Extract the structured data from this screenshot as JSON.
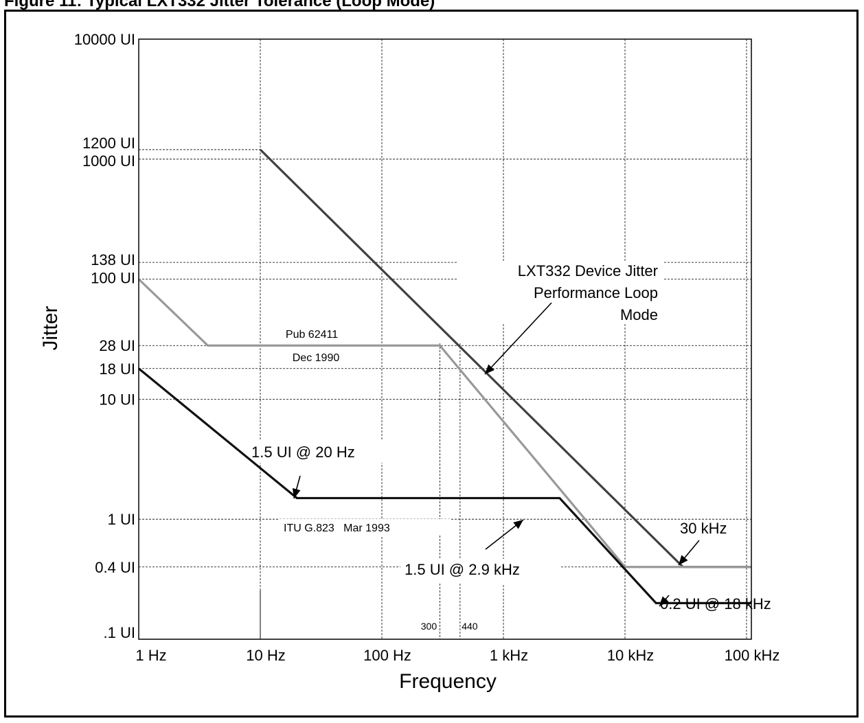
{
  "figure": {
    "caption": "Figure 11: Typical LXT332 Jitter Tolerance (Loop Mode)"
  },
  "chart_data": {
    "type": "line",
    "title": "",
    "xlabel": "Frequency",
    "ylabel": "Jitter",
    "x_scale": "log",
    "y_scale": "log",
    "xlim": [
      1,
      200000
    ],
    "ylim": [
      0.1,
      10000
    ],
    "grid": true,
    "x_ticks": [
      {
        "value": 1,
        "label": "1 Hz"
      },
      {
        "value": 10,
        "label": "10 Hz"
      },
      {
        "value": 100,
        "label": "100 Hz"
      },
      {
        "value": 1000,
        "label": "1 kHz"
      },
      {
        "value": 10000,
        "label": "10 kHz"
      },
      {
        "value": 100000,
        "label": "100 kHz"
      }
    ],
    "y_ticks": [
      {
        "value": 10000,
        "label": "10000 UI"
      },
      {
        "value": 1200,
        "label": "1200 UI"
      },
      {
        "value": 1000,
        "label": "1000 UI"
      },
      {
        "value": 138,
        "label": "138 UI"
      },
      {
        "value": 100,
        "label": "100 UI"
      },
      {
        "value": 28,
        "label": "28 UI"
      },
      {
        "value": 18,
        "label": "18 UI"
      },
      {
        "value": 10,
        "label": "10 UI"
      },
      {
        "value": 1,
        "label": "1 UI"
      },
      {
        "value": 0.4,
        "label": "0.4 UI"
      },
      {
        "value": 0.1,
        "label": ".1 UI"
      }
    ],
    "series": [
      {
        "color": "#404040",
        "points": [
          [
            10,
            1200
          ],
          [
            30000,
            0.4
          ],
          [
            200000,
            0.4
          ]
        ]
      },
      {
        "color": "#999999",
        "points": [
          [
            1,
            100
          ],
          [
            3.7,
            28
          ],
          [
            300,
            28
          ],
          [
            10000,
            0.4
          ],
          [
            200000,
            0.4
          ]
        ]
      },
      {
        "color": "#111111",
        "points": [
          [
            1,
            18
          ],
          [
            20,
            1.5
          ],
          [
            2900,
            1.5
          ],
          [
            18000,
            0.2
          ],
          [
            200000,
            0.2
          ]
        ]
      }
    ],
    "reference_lines": [
      {
        "x": 300,
        "label": "300"
      },
      {
        "x": 440,
        "label": "440"
      }
    ],
    "annotations": [
      {
        "id": "lxt_label",
        "lines": [
          "LXT332 Device Jitter",
          "Performance Loop",
          "Mode"
        ]
      },
      {
        "id": "pub_label",
        "lines": [
          "Pub 62411",
          "Dec 1990"
        ]
      },
      {
        "id": "itu_label",
        "text": "ITU G.823   Mar 1993"
      },
      {
        "id": "pt_20hz",
        "text": "1.5 UI @ 20 Hz"
      },
      {
        "id": "pt_29khz",
        "text": "1.5 UI @ 2.9 kHz"
      },
      {
        "id": "pt_30khz",
        "text": "30 kHz"
      },
      {
        "id": "pt_18khz",
        "text": "0.2 UI @ 18 kHz"
      }
    ]
  }
}
